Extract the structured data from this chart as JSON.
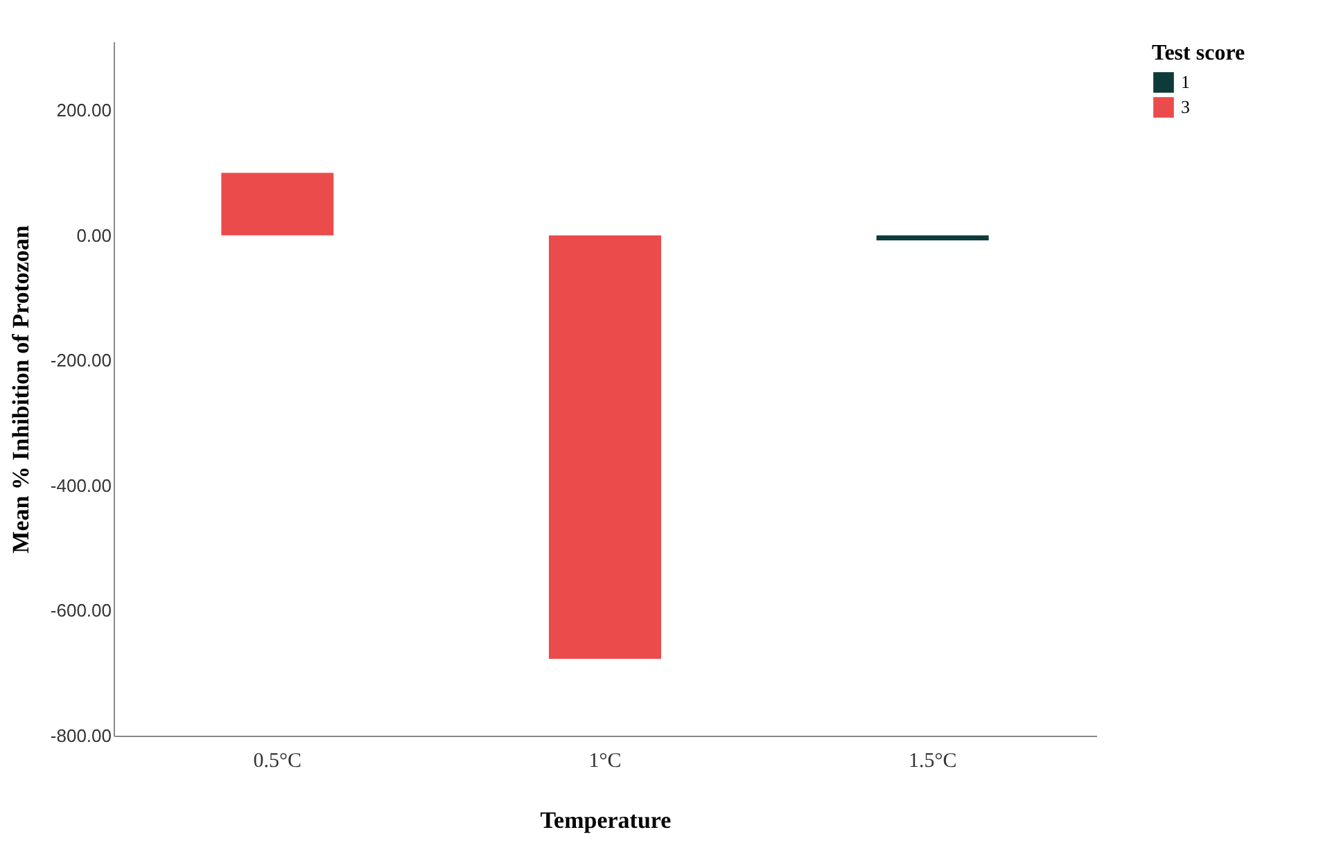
{
  "chart_data": {
    "type": "bar",
    "xlabel": "Temperature",
    "ylabel": "Mean % Inhibition of Protozoan",
    "legend_title": "Test score",
    "categories": [
      "0.5°C",
      "1°C",
      "1.5°C"
    ],
    "series": [
      {
        "name": "1",
        "color": "#0d3b3a",
        "values": [
          null,
          null,
          -8
        ]
      },
      {
        "name": "3",
        "color": "#ec4b4b",
        "values": [
          100,
          -677,
          null
        ]
      }
    ],
    "ylim": [
      -800,
      310
    ],
    "yticks": [
      {
        "value": -800,
        "label": "-800.00"
      },
      {
        "value": -600,
        "label": "-600.00"
      },
      {
        "value": -400,
        "label": "-400.00"
      },
      {
        "value": -200,
        "label": "-200.00"
      },
      {
        "value": 0,
        "label": "0.00"
      },
      {
        "value": 200,
        "label": "200.00"
      }
    ],
    "grid": false,
    "legend": "top right"
  }
}
